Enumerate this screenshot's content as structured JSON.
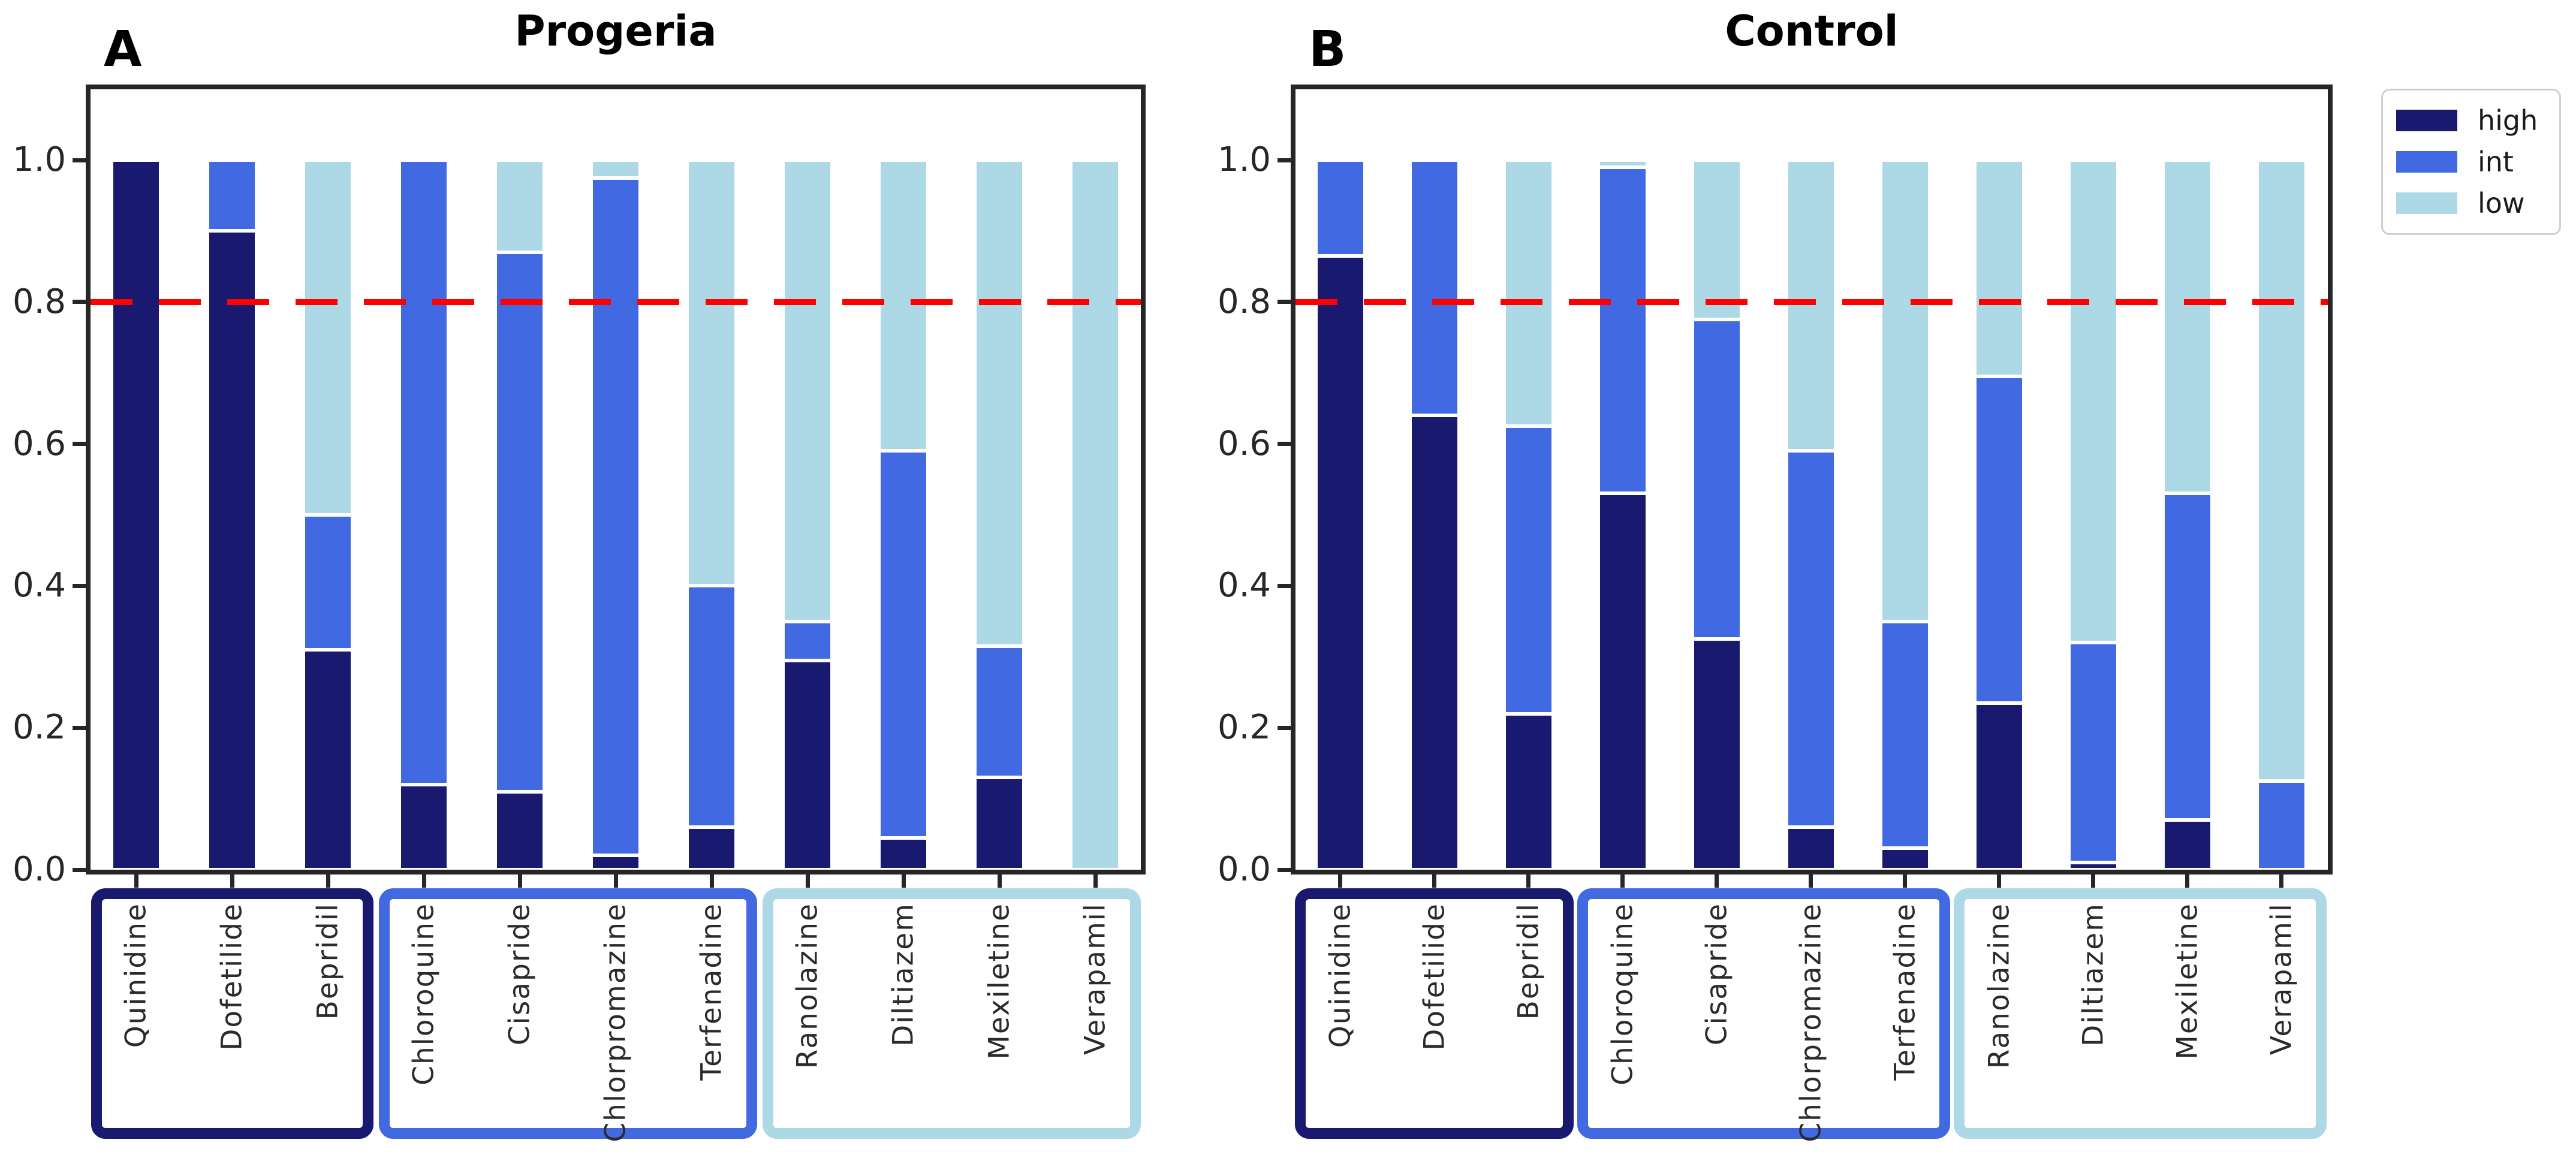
{
  "legend": {
    "items": [
      {
        "label": "high",
        "color": "#191970"
      },
      {
        "label": "int",
        "color": "#4169e1"
      },
      {
        "label": "low",
        "color": "#add8e6"
      }
    ]
  },
  "chart_data": [
    {
      "type": "bar",
      "stacked": true,
      "panel_label": "A",
      "title": "Progeria",
      "categories": [
        "Quinidine",
        "Dofetilide",
        "Bepridil",
        "Chloroquine",
        "Cisapride",
        "Chlorpromazine",
        "Terfenadine",
        "Ranolazine",
        "Diltiazem",
        "Mexiletine",
        "Verapamil"
      ],
      "series": [
        {
          "name": "high",
          "color": "#191970",
          "values": [
            1.0,
            0.9,
            0.31,
            0.12,
            0.11,
            0.02,
            0.06,
            0.295,
            0.045,
            0.13,
            0.0
          ]
        },
        {
          "name": "int",
          "color": "#4169e1",
          "values": [
            0.0,
            0.1,
            0.19,
            0.88,
            0.76,
            0.955,
            0.34,
            0.055,
            0.545,
            0.185,
            0.0
          ]
        },
        {
          "name": "low",
          "color": "#add8e6",
          "values": [
            0.0,
            0.0,
            0.5,
            0.0,
            0.13,
            0.025,
            0.6,
            0.65,
            0.41,
            0.685,
            1.0
          ]
        }
      ],
      "ylim": [
        0,
        1.1
      ],
      "yticks": [
        0.0,
        0.2,
        0.4,
        0.6,
        0.8,
        1.0
      ],
      "grid": false,
      "threshold_line": {
        "y": 0.8,
        "color": "#ff0000",
        "style": "dashed"
      },
      "category_groups": [
        {
          "name": "high-risk-box",
          "color": "#191970",
          "drugs": [
            "Quinidine",
            "Dofetilide",
            "Bepridil"
          ]
        },
        {
          "name": "int-risk-box",
          "color": "#4169e1",
          "drugs": [
            "Chloroquine",
            "Cisapride",
            "Chlorpromazine",
            "Terfenadine"
          ]
        },
        {
          "name": "low-risk-box",
          "color": "#add8e6",
          "drugs": [
            "Ranolazine",
            "Diltiazem",
            "Mexiletine",
            "Verapamil"
          ]
        }
      ]
    },
    {
      "type": "bar",
      "stacked": true,
      "panel_label": "B",
      "title": "Control",
      "categories": [
        "Quinidine",
        "Dofetilide",
        "Bepridil",
        "Chloroquine",
        "Cisapride",
        "Chlorpromazine",
        "Terfenadine",
        "Ranolazine",
        "Diltiazem",
        "Mexiletine",
        "Verapamil"
      ],
      "series": [
        {
          "name": "high",
          "color": "#191970",
          "values": [
            0.865,
            0.64,
            0.22,
            0.53,
            0.325,
            0.06,
            0.03,
            0.235,
            0.01,
            0.07,
            0.0
          ]
        },
        {
          "name": "int",
          "color": "#4169e1",
          "values": [
            0.135,
            0.36,
            0.405,
            0.46,
            0.45,
            0.53,
            0.32,
            0.46,
            0.31,
            0.46,
            0.125
          ]
        },
        {
          "name": "low",
          "color": "#add8e6",
          "values": [
            0.0,
            0.0,
            0.375,
            0.01,
            0.225,
            0.41,
            0.65,
            0.305,
            0.68,
            0.47,
            0.875
          ]
        }
      ],
      "ylim": [
        0,
        1.1
      ],
      "yticks": [
        0.0,
        0.2,
        0.4,
        0.6,
        0.8,
        1.0
      ],
      "grid": false,
      "threshold_line": {
        "y": 0.8,
        "color": "#ff0000",
        "style": "dashed"
      },
      "category_groups": [
        {
          "name": "high-risk-box",
          "color": "#191970",
          "drugs": [
            "Quinidine",
            "Dofetilide",
            "Bepridil"
          ]
        },
        {
          "name": "int-risk-box",
          "color": "#4169e1",
          "drugs": [
            "Chloroquine",
            "Cisapride",
            "Chlorpromazine",
            "Terfenadine"
          ]
        },
        {
          "name": "low-risk-box",
          "color": "#add8e6",
          "drugs": [
            "Ranolazine",
            "Diltiazem",
            "Mexiletine",
            "Verapamil"
          ]
        }
      ]
    }
  ]
}
